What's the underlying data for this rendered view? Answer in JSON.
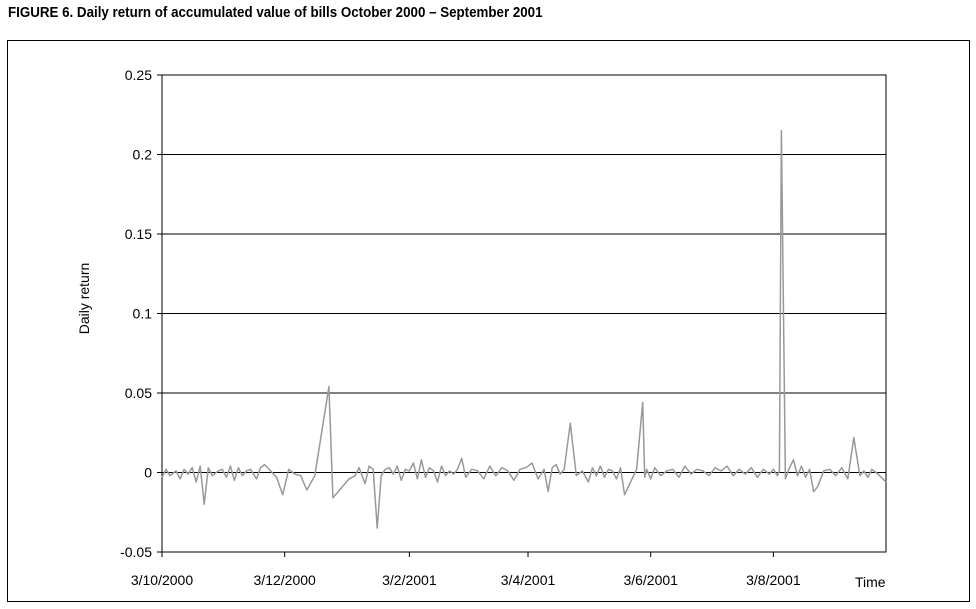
{
  "figure_title": "FIGURE 6. Daily return of accumulated value of bills October 2000 – September 2001",
  "chart_data": {
    "type": "line",
    "title": "",
    "ylabel": "Daily return",
    "xlabel": "Time",
    "ylim": [
      -0.05,
      0.25
    ],
    "yticks": [
      -0.05,
      0,
      0.05,
      0.1,
      0.15,
      0.2,
      0.25
    ],
    "ytick_labels": [
      "-0.05",
      "0",
      "0.05",
      "0.1",
      "0.15",
      "0.2",
      "0.25"
    ],
    "xlim": [
      "2000-10-03",
      "2001-09-28"
    ],
    "xticks": [
      "2000-10-03",
      "2000-12-03",
      "2001-02-03",
      "2001-04-03",
      "2001-06-03",
      "2001-08-03"
    ],
    "xtick_labels": [
      "3/10/2000",
      "3/12/2000",
      "3/2/2001",
      "3/4/2001",
      "3/6/2001",
      "3/8/2001"
    ],
    "grid": "horizontal",
    "line_color": "#999999",
    "series": [
      {
        "x": [
          "2000-10-03",
          "2000-10-05",
          "2000-10-07",
          "2000-10-10",
          "2000-10-12",
          "2000-10-14",
          "2000-10-16",
          "2000-10-18",
          "2000-10-20",
          "2000-10-22",
          "2000-10-24",
          "2000-10-26",
          "2000-10-28",
          "2000-10-31",
          "2000-11-02",
          "2000-11-04",
          "2000-11-06",
          "2000-11-08",
          "2000-11-10",
          "2000-11-12",
          "2000-11-14",
          "2000-11-16",
          "2000-11-19",
          "2000-11-21",
          "2000-11-23",
          "2000-11-26",
          "2000-11-29",
          "2000-12-02",
          "2000-12-05",
          "2000-12-08",
          "2000-12-11",
          "2000-12-14",
          "2000-12-18",
          "2000-12-25",
          "2000-12-27",
          "2001-01-04",
          "2001-01-07",
          "2001-01-09",
          "2001-01-12",
          "2001-01-14",
          "2001-01-16",
          "2001-01-18",
          "2001-01-20",
          "2001-01-22",
          "2001-01-24",
          "2001-01-26",
          "2001-01-28",
          "2001-01-30",
          "2001-02-01",
          "2001-02-03",
          "2001-02-05",
          "2001-02-07",
          "2001-02-09",
          "2001-02-11",
          "2001-02-13",
          "2001-02-15",
          "2001-02-17",
          "2001-02-19",
          "2001-02-21",
          "2001-02-23",
          "2001-02-25",
          "2001-02-27",
          "2001-03-01",
          "2001-03-03",
          "2001-03-06",
          "2001-03-09",
          "2001-03-12",
          "2001-03-15",
          "2001-03-18",
          "2001-03-21",
          "2001-03-24",
          "2001-03-27",
          "2001-03-30",
          "2001-04-02",
          "2001-04-05",
          "2001-04-08",
          "2001-04-11",
          "2001-04-13",
          "2001-04-15",
          "2001-04-17",
          "2001-04-19",
          "2001-04-21",
          "2001-04-24",
          "2001-04-27",
          "2001-04-30",
          "2001-05-03",
          "2001-05-05",
          "2001-05-07",
          "2001-05-09",
          "2001-05-11",
          "2001-05-13",
          "2001-05-15",
          "2001-05-17",
          "2001-05-19",
          "2001-05-21",
          "2001-05-24",
          "2001-05-27",
          "2001-05-30",
          "2001-05-31",
          "2001-06-01",
          "2001-06-03",
          "2001-06-05",
          "2001-06-08",
          "2001-06-11",
          "2001-06-14",
          "2001-06-17",
          "2001-06-20",
          "2001-06-23",
          "2001-06-26",
          "2001-06-29",
          "2001-07-02",
          "2001-07-05",
          "2001-07-08",
          "2001-07-11",
          "2001-07-14",
          "2001-07-17",
          "2001-07-20",
          "2001-07-23",
          "2001-07-26",
          "2001-07-29",
          "2001-08-01",
          "2001-08-03",
          "2001-08-05",
          "2001-08-06",
          "2001-08-07",
          "2001-08-09",
          "2001-08-11",
          "2001-08-13",
          "2001-08-15",
          "2001-08-17",
          "2001-08-19",
          "2001-08-21",
          "2001-08-23",
          "2001-08-25",
          "2001-08-28",
          "2001-08-31",
          "2001-09-03",
          "2001-09-06",
          "2001-09-09",
          "2001-09-12",
          "2001-09-15",
          "2001-09-17",
          "2001-09-19",
          "2001-09-21",
          "2001-09-24",
          "2001-09-28"
        ],
        "y": [
          -0.003,
          0.002,
          -0.002,
          0.001,
          -0.004,
          0.002,
          -0.001,
          0.003,
          -0.006,
          0.004,
          -0.02,
          0.003,
          -0.002,
          0.001,
          0.002,
          -0.003,
          0.004,
          -0.005,
          0.003,
          -0.002,
          0.001,
          0.002,
          -0.004,
          0.003,
          0.005,
          0.001,
          -0.003,
          -0.014,
          0.002,
          -0.001,
          -0.002,
          -0.011,
          -0.002,
          0.054,
          -0.016,
          -0.004,
          -0.002,
          0.003,
          -0.007,
          0.004,
          0.002,
          -0.035,
          -0.002,
          0.002,
          0.003,
          -0.001,
          0.004,
          -0.005,
          0.002,
          0.001,
          0.006,
          -0.004,
          0.008,
          -0.003,
          0.003,
          0.001,
          -0.006,
          0.004,
          -0.002,
          0.001,
          -0.001,
          0.002,
          0.009,
          -0.003,
          0.002,
          0.001,
          -0.004,
          0.004,
          -0.002,
          0.003,
          0.001,
          -0.005,
          0.002,
          0.003,
          0.006,
          -0.004,
          0.002,
          -0.012,
          0.003,
          0.005,
          -0.001,
          0.002,
          0.031,
          -0.002,
          0.001,
          -0.006,
          0.003,
          -0.002,
          0.004,
          -0.003,
          0.002,
          0.001,
          -0.004,
          0.003,
          -0.014,
          -0.006,
          0.002,
          0.044,
          -0.003,
          0.002,
          -0.004,
          0.003,
          -0.002,
          0.001,
          0.002,
          -0.003,
          0.004,
          -0.001,
          0.002,
          0.001,
          -0.002,
          0.003,
          0.001,
          0.004,
          -0.002,
          0.002,
          -0.001,
          0.003,
          -0.003,
          0.002,
          -0.001,
          0.002,
          -0.002,
          0.001,
          0.215,
          -0.004,
          0.003,
          0.008,
          -0.002,
          0.004,
          -0.003,
          0.002,
          -0.012,
          -0.009,
          0.001,
          0.002,
          -0.002,
          0.003,
          -0.004,
          0.022,
          -0.002,
          0.001,
          -0.003,
          0.002,
          -0.001,
          -0.006
        ]
      }
    ]
  }
}
